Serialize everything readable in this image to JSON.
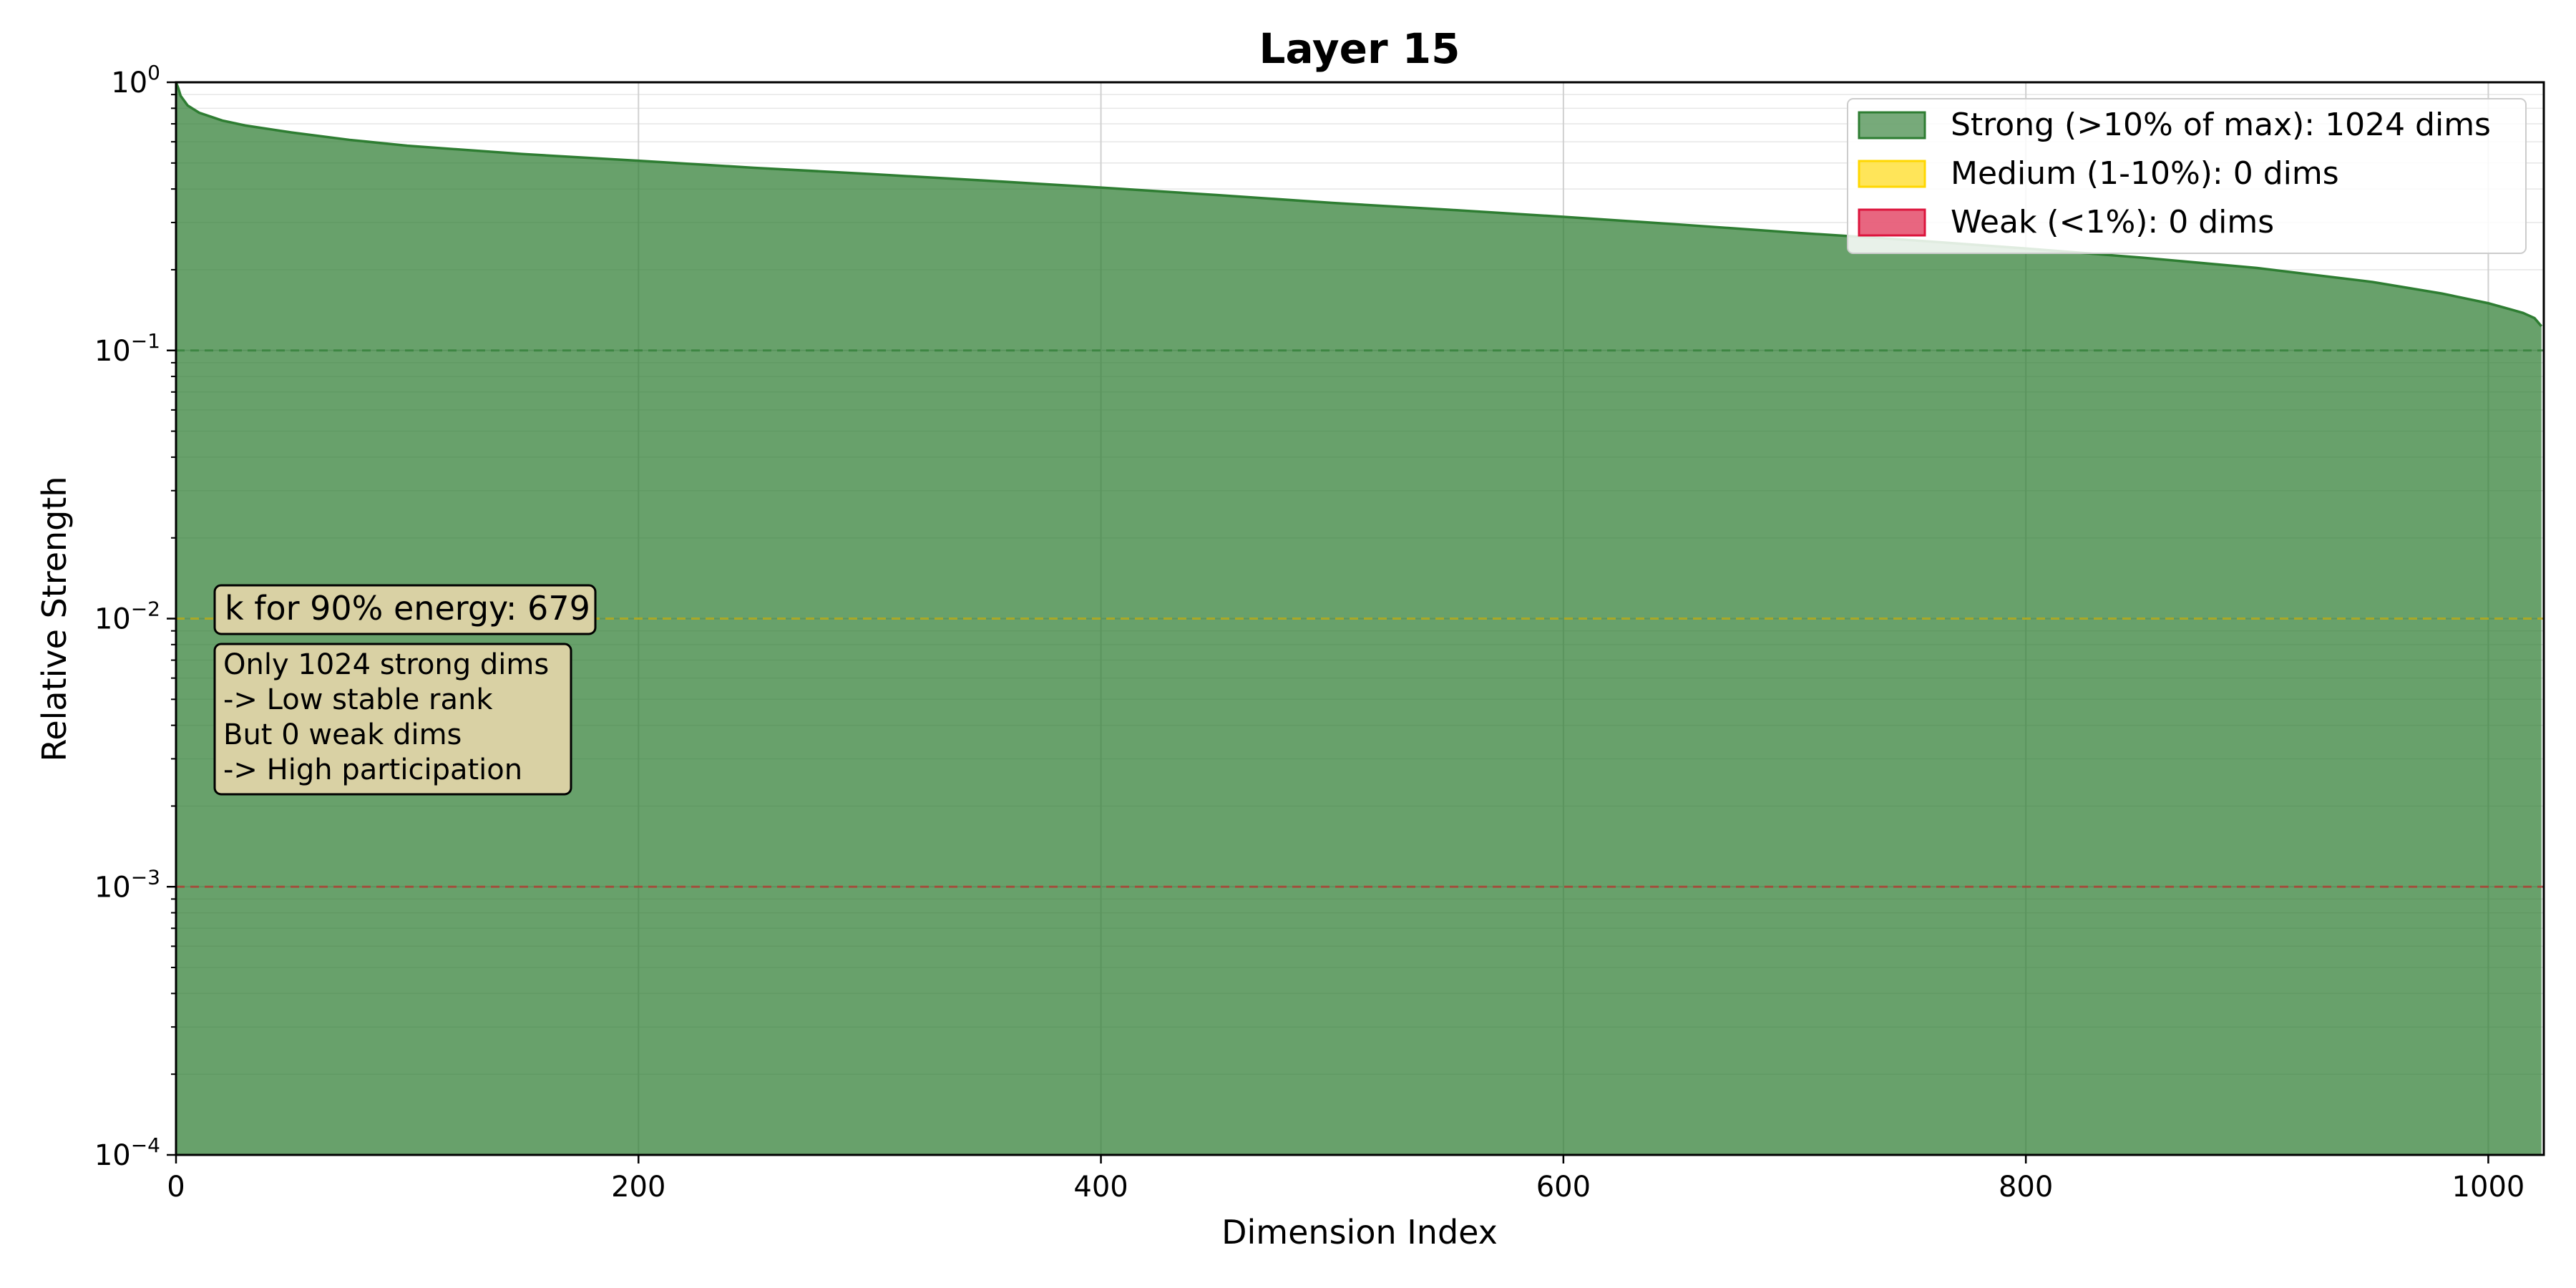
{
  "chart_data": {
    "type": "area",
    "title": "Layer 15",
    "xlabel": "Dimension Index",
    "ylabel": "Relative Strength",
    "xlim": [
      0,
      1024
    ],
    "ylim": [
      0.0001,
      1
    ],
    "yscale": "log",
    "grid": true,
    "legend_position": "top-right",
    "x_ticks": [
      0,
      200,
      400,
      600,
      800,
      1000
    ],
    "y_ticks": [
      {
        "base": "10",
        "exp": "0",
        "value": 1
      },
      {
        "base": "10",
        "exp": "−1",
        "value": 0.1
      },
      {
        "base": "10",
        "exp": "−2",
        "value": 0.01
      },
      {
        "base": "10",
        "exp": "−3",
        "value": 0.001
      },
      {
        "base": "10",
        "exp": "−4",
        "value": 0.0001
      }
    ],
    "series": [
      {
        "name": "Strong (>10% of max): 1024 dims",
        "color": "#2e7d32",
        "x": [
          0,
          1,
          2,
          5,
          10,
          20,
          30,
          50,
          75,
          100,
          150,
          200,
          250,
          300,
          350,
          400,
          450,
          500,
          550,
          600,
          650,
          700,
          750,
          800,
          850,
          900,
          950,
          980,
          1000,
          1010,
          1015,
          1020,
          1023
        ],
        "y": [
          1.0,
          0.95,
          0.89,
          0.82,
          0.77,
          0.72,
          0.69,
          0.65,
          0.61,
          0.58,
          0.54,
          0.51,
          0.48,
          0.455,
          0.43,
          0.405,
          0.38,
          0.355,
          0.335,
          0.315,
          0.295,
          0.275,
          0.258,
          0.24,
          0.222,
          0.203,
          0.18,
          0.163,
          0.15,
          0.142,
          0.138,
          0.132,
          0.123
        ]
      },
      {
        "name": "Medium (1-10%): 0 dims",
        "color": "#ffd700",
        "x": [],
        "y": []
      },
      {
        "name": "Weak (<1%): 0 dims",
        "color": "#dc143c",
        "x": [],
        "y": []
      }
    ],
    "threshold_lines": [
      {
        "y": 0.1,
        "color": "#2e7d32"
      },
      {
        "y": 0.01,
        "color": "#d4b106"
      },
      {
        "y": 0.001,
        "color": "#c62828"
      }
    ],
    "annotations": {
      "energy": "k for 90% energy: 679",
      "note_lines": [
        "Only 1024 strong dims",
        "-> Low stable rank",
        "But 0 weak dims",
        "-> High participation"
      ]
    }
  }
}
